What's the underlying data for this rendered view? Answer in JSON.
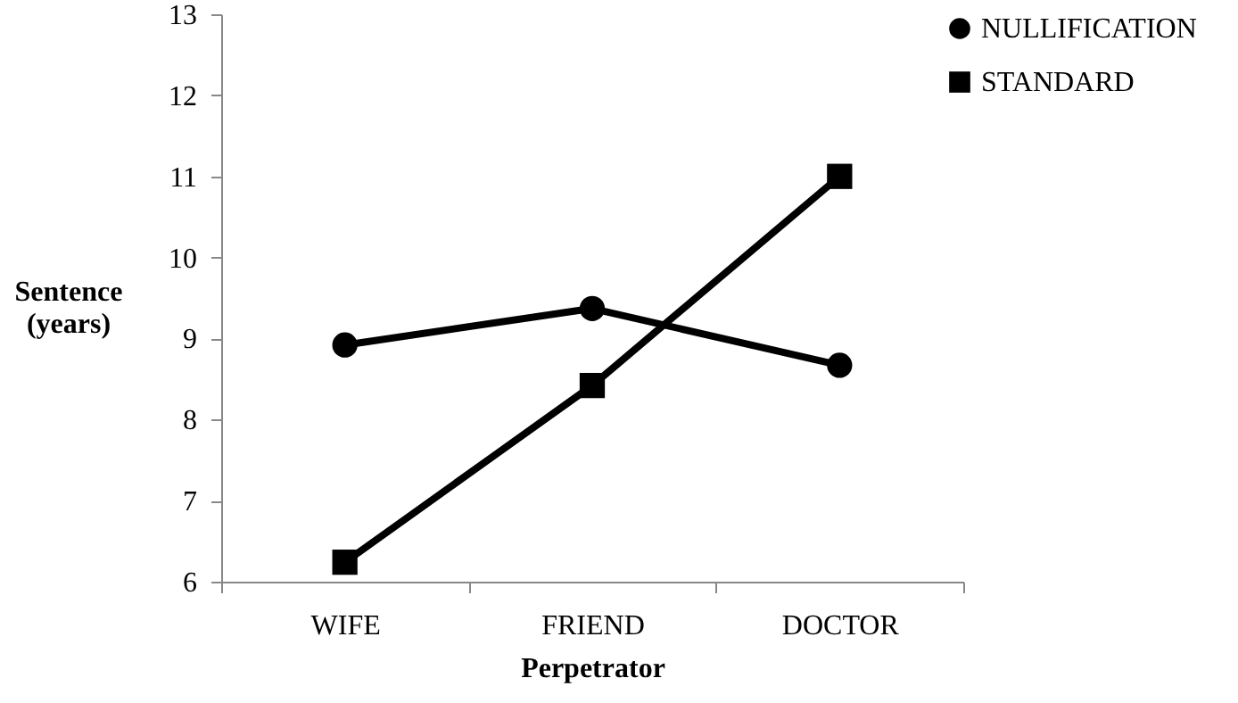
{
  "chart_data": {
    "type": "line",
    "xlabel": "Perpetrator",
    "ylabel": "Sentence (years)",
    "categories": [
      "WIFE",
      "FRIEND",
      "DOCTOR"
    ],
    "series": [
      {
        "name": "NULLIFICATION",
        "color": "#000000",
        "marker": "circle",
        "values": [
          8.92,
          9.37,
          8.67
        ]
      },
      {
        "name": "STANDARD",
        "color": "#000000",
        "marker": "square",
        "values": [
          6.24,
          8.42,
          11.0
        ]
      }
    ],
    "ylim": [
      6,
      13
    ],
    "yticks": [
      6,
      7,
      8,
      9,
      10,
      11,
      12,
      13
    ],
    "grid": false,
    "legend": "right",
    "line_style": "solid"
  }
}
